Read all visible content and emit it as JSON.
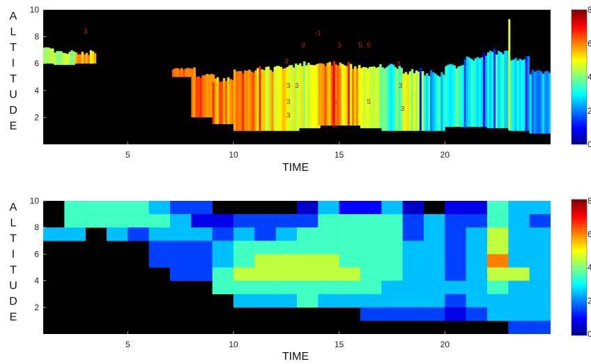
{
  "chart_data": [
    {
      "type": "heatmap",
      "xlabel": "TIME",
      "ylabel": "ALTITUDE",
      "xlim": [
        1,
        25
      ],
      "ylim": [
        0,
        10
      ],
      "xticks": [
        5,
        10,
        15,
        20
      ],
      "yticks": [
        2,
        4,
        6,
        8,
        10
      ],
      "colorbar": {
        "range": [
          0,
          8
        ],
        "ticks": [
          "0",
          "2",
          "4",
          "6",
          "8"
        ]
      },
      "colormap": [
        "#00008f",
        "#0000ff",
        "#0080ff",
        "#00ffff",
        "#80ff80",
        "#ffff00",
        "#ff8000",
        "#ff0000",
        "#800000"
      ],
      "background": "#000000",
      "columns": [
        {
          "x": 1,
          "bottom": 6.0,
          "top": 7.3,
          "value": 4.6
        },
        {
          "x": 2,
          "bottom": 5.9,
          "top": 7.0,
          "value": 4.5
        },
        {
          "x": 3,
          "bottom": 6.0,
          "top": 7.0,
          "value": 5.6
        },
        {
          "x": 7.6,
          "bottom": 5.0,
          "top": 5.8,
          "value": 6.2
        },
        {
          "x": 8.5,
          "bottom": 2.0,
          "top": 5.3,
          "value": 6.2
        },
        {
          "x": 9.5,
          "bottom": 1.5,
          "top": 5.0,
          "value": 6.0
        },
        {
          "x": 10.5,
          "bottom": 1.0,
          "top": 5.6,
          "value": 6.2
        },
        {
          "x": 11.5,
          "bottom": 1.0,
          "top": 5.8,
          "value": 5.2
        },
        {
          "x": 12.5,
          "bottom": 1.0,
          "top": 6.0,
          "value": 4.9
        },
        {
          "x": 13.5,
          "bottom": 1.2,
          "top": 6.2,
          "value": 4.6
        },
        {
          "x": 14.5,
          "bottom": 1.4,
          "top": 6.2,
          "value": 5.8
        },
        {
          "x": 15.5,
          "bottom": 1.4,
          "top": 6.0,
          "value": 5.4
        },
        {
          "x": 16.5,
          "bottom": 1.2,
          "top": 6.0,
          "value": 4.4
        },
        {
          "x": 17.5,
          "bottom": 1.0,
          "top": 6.0,
          "value": 3.5
        },
        {
          "x": 18.5,
          "bottom": 1.0,
          "top": 5.6,
          "value": 4.6
        },
        {
          "x": 19.5,
          "bottom": 1.0,
          "top": 5.4,
          "value": 3.0
        },
        {
          "x": 20.5,
          "bottom": 1.3,
          "top": 6.0,
          "value": 3.4
        },
        {
          "x": 21.5,
          "bottom": 1.3,
          "top": 6.6,
          "value": 3.0
        },
        {
          "x": 22.5,
          "bottom": 1.2,
          "top": 7.0,
          "value": 3.2
        },
        {
          "x": 23.5,
          "bottom": 1.0,
          "top": 6.6,
          "value": 2.6
        },
        {
          "x": 24.5,
          "bottom": 0.8,
          "top": 5.6,
          "value": 2.2
        }
      ],
      "spikes": [
        {
          "x": 11.2,
          "bottom": 1.0,
          "top": 5.8,
          "value": 6.8
        },
        {
          "x": 14.7,
          "bottom": 1.3,
          "top": 6.2,
          "value": 7.2
        },
        {
          "x": 15.4,
          "bottom": 1.4,
          "top": 6.1,
          "value": 6.8
        },
        {
          "x": 18.8,
          "bottom": 1.0,
          "top": 5.7,
          "value": 1.2
        },
        {
          "x": 19.3,
          "bottom": 1.0,
          "top": 5.5,
          "value": 2.0
        },
        {
          "x": 20.9,
          "bottom": 1.2,
          "top": 6.3,
          "value": 1.6
        },
        {
          "x": 21.8,
          "bottom": 1.3,
          "top": 6.8,
          "value": 1.0
        },
        {
          "x": 22.3,
          "bottom": 1.2,
          "top": 7.1,
          "value": 1.4
        },
        {
          "x": 23.0,
          "bottom": 1.1,
          "top": 9.3,
          "value": 4.8
        },
        {
          "x": 23.8,
          "bottom": 1.0,
          "top": 6.5,
          "value": 1.2
        }
      ],
      "annotations": [
        {
          "x": 3.0,
          "y": 8.2,
          "text": "3"
        },
        {
          "x": 14.0,
          "y": 8.1,
          "text": "-1"
        },
        {
          "x": 13.3,
          "y": 7.2,
          "text": "3"
        },
        {
          "x": 15.0,
          "y": 7.2,
          "text": "3"
        },
        {
          "x": 16.0,
          "y": 7.2,
          "text": "5"
        },
        {
          "x": 16.4,
          "y": 7.2,
          "text": "5"
        },
        {
          "x": 12.5,
          "y": 6.0,
          "text": "3"
        },
        {
          "x": 12.6,
          "y": 4.2,
          "text": "3"
        },
        {
          "x": 13.0,
          "y": 4.2,
          "text": "3"
        },
        {
          "x": 12.6,
          "y": 3.0,
          "text": "3"
        },
        {
          "x": 14.8,
          "y": 3.0,
          "text": "5"
        },
        {
          "x": 16.4,
          "y": 3.0,
          "text": "5"
        },
        {
          "x": 12.6,
          "y": 2.0,
          "text": "3"
        },
        {
          "x": 17.8,
          "y": 5.8,
          "text": "3"
        },
        {
          "x": 17.9,
          "y": 4.2,
          "text": "3"
        },
        {
          "x": 18.0,
          "y": 2.5,
          "text": "3"
        }
      ]
    },
    {
      "type": "heatmap",
      "xlabel": "TIME",
      "ylabel": "ALTITUDE",
      "xlim": [
        1,
        25
      ],
      "ylim": [
        0,
        10
      ],
      "xticks": [
        5,
        10,
        15,
        20
      ],
      "yticks": [
        2,
        4,
        6,
        8,
        10
      ],
      "colorbar": {
        "range": [
          0,
          8
        ],
        "ticks": [
          "0",
          "2",
          "4",
          "6",
          "8"
        ]
      },
      "x_bin_edges": [
        1,
        2,
        3,
        4,
        5,
        6,
        7,
        8,
        9,
        10,
        11,
        12,
        13,
        14,
        15,
        16,
        17,
        18,
        19,
        20,
        21,
        22,
        23,
        24,
        25
      ],
      "y_bin_edges": [
        0,
        1,
        2,
        3,
        4,
        5,
        6,
        7,
        8,
        9,
        10
      ],
      "nodata": null,
      "z_rows_top_to_bottom": [
        [
          null,
          3.5,
          3.5,
          3.5,
          3.5,
          2.5,
          1.5,
          1.5,
          null,
          null,
          null,
          null,
          0.5,
          2.5,
          1.0,
          1.0,
          2.5,
          0.5,
          null,
          0.8,
          0.8,
          3.5,
          2.5,
          2.5
        ],
        [
          null,
          3.5,
          3.5,
          3.5,
          3.5,
          3.5,
          2.5,
          0.8,
          0.8,
          1.5,
          1.5,
          1.5,
          1.5,
          3.5,
          3.5,
          3.5,
          3.5,
          1.5,
          2.5,
          1.5,
          1.5,
          3.5,
          2.5,
          1.5
        ],
        [
          2.5,
          2.5,
          null,
          2.5,
          1.5,
          2.5,
          2.5,
          2.5,
          1.5,
          2.5,
          1.5,
          2.5,
          3.5,
          3.5,
          3.5,
          3.5,
          3.5,
          1.5,
          2.5,
          1.5,
          2.5,
          4.5,
          2.5,
          2.5
        ],
        [
          null,
          null,
          null,
          null,
          null,
          1.5,
          1.5,
          1.5,
          2.5,
          3.5,
          3.5,
          3.5,
          3.5,
          3.5,
          3.5,
          3.5,
          3.5,
          2.5,
          2.5,
          1.5,
          2.5,
          4.5,
          2.5,
          2.5
        ],
        [
          null,
          null,
          null,
          null,
          null,
          1.5,
          1.5,
          1.5,
          2.5,
          3.5,
          4.5,
          4.5,
          4.5,
          4.5,
          3.5,
          3.5,
          3.5,
          2.5,
          2.5,
          1.5,
          2.5,
          6.0,
          2.5,
          2.5
        ],
        [
          null,
          null,
          null,
          null,
          null,
          null,
          1.5,
          1.5,
          3.5,
          4.5,
          4.5,
          4.5,
          4.5,
          4.5,
          4.5,
          3.5,
          3.5,
          2.5,
          2.5,
          1.5,
          2.5,
          4.5,
          4.5,
          2.5
        ],
        [
          null,
          null,
          null,
          null,
          null,
          null,
          null,
          null,
          3.5,
          3.5,
          3.5,
          3.5,
          3.5,
          3.5,
          3.5,
          3.5,
          2.5,
          2.5,
          2.5,
          2.5,
          2.5,
          3.5,
          2.5,
          2.5
        ],
        [
          null,
          null,
          null,
          null,
          null,
          null,
          null,
          null,
          null,
          2.5,
          2.5,
          2.5,
          3.5,
          2.5,
          2.5,
          2.5,
          2.5,
          2.5,
          2.5,
          1.5,
          2.5,
          2.5,
          2.5,
          2.5
        ],
        [
          null,
          null,
          null,
          null,
          null,
          null,
          null,
          null,
          null,
          null,
          null,
          null,
          null,
          null,
          null,
          1.5,
          1.5,
          1.5,
          1.5,
          0.8,
          1.5,
          2.5,
          2.5,
          2.5
        ],
        [
          null,
          null,
          null,
          null,
          null,
          null,
          null,
          null,
          null,
          null,
          null,
          null,
          null,
          null,
          null,
          null,
          null,
          null,
          null,
          null,
          null,
          null,
          1.5,
          1.5
        ]
      ]
    }
  ]
}
